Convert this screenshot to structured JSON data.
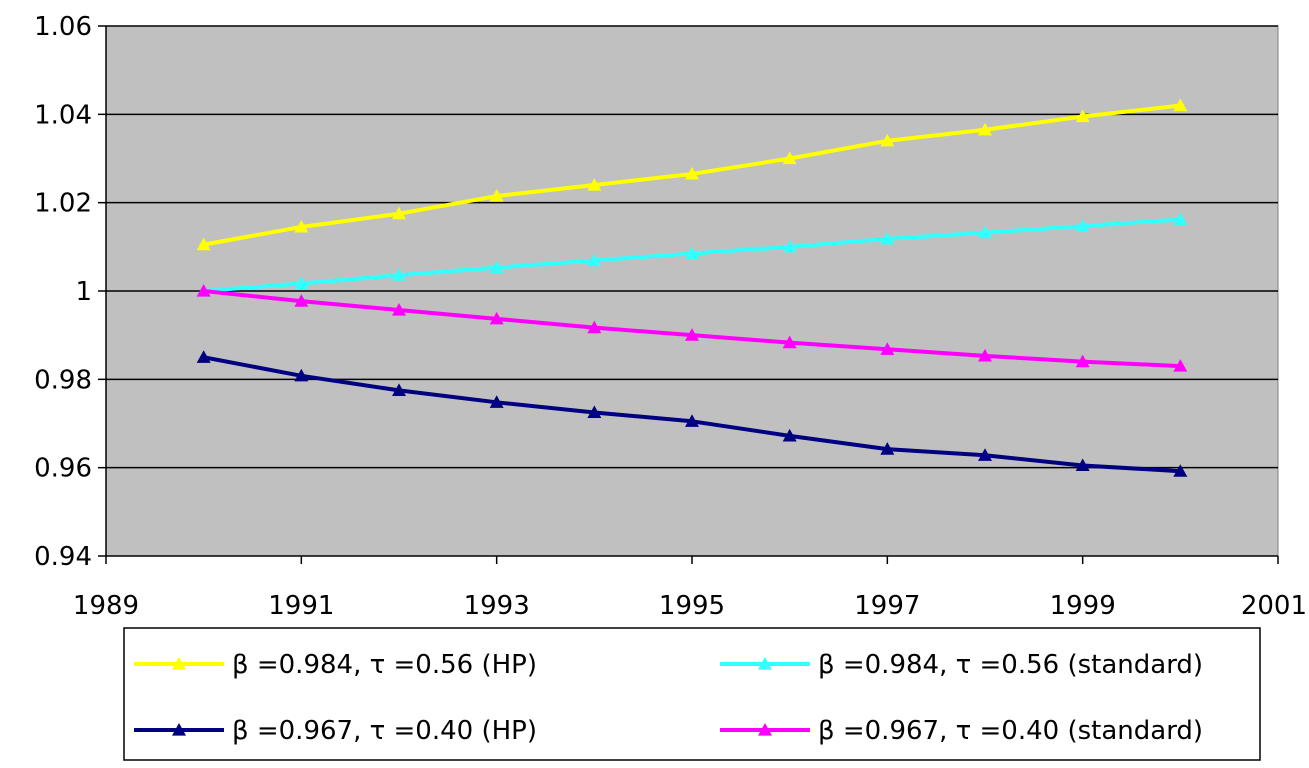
{
  "chart_data": {
    "type": "line",
    "title": "",
    "xlabel": "",
    "ylabel": "",
    "xlim": [
      1989,
      2001
    ],
    "ylim": [
      0.94,
      1.06
    ],
    "x_ticks": [
      1989,
      1991,
      1993,
      1995,
      1997,
      1999,
      2001
    ],
    "y_ticks": [
      0.94,
      0.96,
      0.98,
      1.0,
      1.02,
      1.04,
      1.06
    ],
    "x_tick_labels": [
      "1989",
      "1991",
      "1993",
      "1995",
      "1997",
      "1999",
      "2001"
    ],
    "y_tick_labels": [
      "0.94",
      "0.96",
      "0.98",
      "1",
      "1.02",
      "1.04",
      "1.06"
    ],
    "grid": true,
    "plot_background": "#c0c0c0",
    "legend_position": "bottom",
    "x": [
      1990,
      1991,
      1992,
      1993,
      1994,
      1995,
      1996,
      1997,
      1998,
      1999,
      2000
    ],
    "series": [
      {
        "name": "β =0.984, τ =0.56 (HP)",
        "color": "#ffff00",
        "marker": "triangle",
        "values": [
          1.0105,
          1.0145,
          1.0175,
          1.0215,
          1.024,
          1.0265,
          1.03,
          1.034,
          1.0365,
          1.0395,
          1.042
        ]
      },
      {
        "name": "β =0.984, τ =0.56 (standard)",
        "color": "#33ffff",
        "marker": "triangle",
        "values": [
          1.0,
          1.0017,
          1.0036,
          1.0053,
          1.0069,
          1.0085,
          1.01,
          1.0118,
          1.0132,
          1.0147,
          1.0162
        ]
      },
      {
        "name": "β =0.967, τ =0.40 (HP)",
        "color": "#000080",
        "marker": "triangle",
        "values": [
          0.985,
          0.9808,
          0.9775,
          0.9748,
          0.9725,
          0.9705,
          0.9672,
          0.9642,
          0.9628,
          0.9605,
          0.9592
        ]
      },
      {
        "name": "β =0.967, τ =0.40 (standard)",
        "color": "#ff00ff",
        "marker": "triangle",
        "values": [
          1.0,
          0.9977,
          0.9957,
          0.9937,
          0.9917,
          0.99,
          0.9883,
          0.9868,
          0.9853,
          0.984,
          0.983
        ]
      }
    ]
  }
}
